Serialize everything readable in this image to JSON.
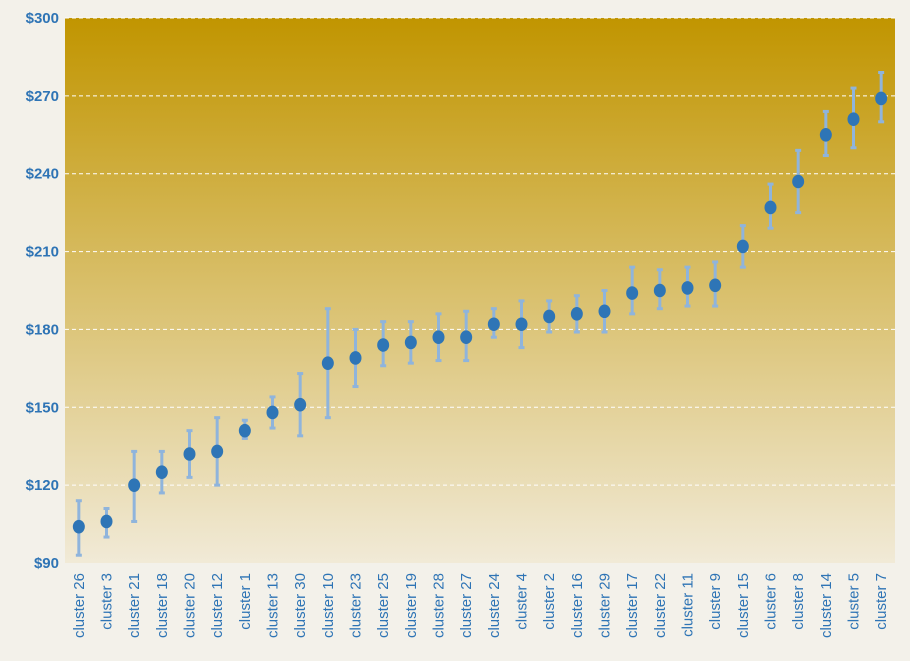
{
  "chart_data": {
    "type": "scatter",
    "title": "",
    "xlabel": "",
    "ylabel": "",
    "ylim": [
      90,
      300
    ],
    "yticks": [
      90,
      120,
      150,
      180,
      210,
      240,
      270,
      300
    ],
    "ytick_labels": [
      "$90",
      "$120",
      "$150",
      "$180",
      "$210",
      "$240",
      "$270",
      "$300"
    ],
    "grid": true,
    "error_bars": true,
    "categories": [
      "cluster 26",
      "cluster 3",
      "cluster 21",
      "cluster 18",
      "cluster 20",
      "cluster 12",
      "cluster 1",
      "cluster 13",
      "cluster 30",
      "cluster 10",
      "cluster 23",
      "cluster 25",
      "cluster 19",
      "cluster 28",
      "cluster 27",
      "cluster 24",
      "cluster 4",
      "cluster 2",
      "cluster 16",
      "cluster 29",
      "cluster 17",
      "cluster 22",
      "cluster 11",
      "cluster 9",
      "cluster 15",
      "cluster 6",
      "cluster 8",
      "cluster 14",
      "cluster 5",
      "cluster 7"
    ],
    "values": [
      104,
      106,
      120,
      125,
      132,
      133,
      141,
      148,
      151,
      167,
      169,
      174,
      175,
      177,
      177,
      182,
      182,
      185,
      186,
      187,
      194,
      195,
      196,
      197,
      212,
      227,
      237,
      255,
      261,
      269
    ],
    "error_low": [
      93,
      100,
      106,
      117,
      123,
      120,
      138,
      142,
      139,
      146,
      158,
      166,
      167,
      168,
      168,
      177,
      173,
      179,
      179,
      179,
      186,
      188,
      189,
      189,
      204,
      219,
      225,
      247,
      250,
      260
    ],
    "error_high": [
      114,
      111,
      133,
      133,
      141,
      146,
      145,
      154,
      163,
      188,
      180,
      183,
      183,
      186,
      187,
      188,
      191,
      191,
      193,
      195,
      204,
      203,
      204,
      206,
      220,
      236,
      249,
      264,
      273,
      279
    ],
    "colors": {
      "marker": "#2e75b6",
      "error_bar": "#8fb4dc",
      "plot_bg_top": "#c19500",
      "plot_bg_bottom": "#f1ead7",
      "grid": "#ffffff",
      "tick_text": "#2e74b5"
    }
  }
}
